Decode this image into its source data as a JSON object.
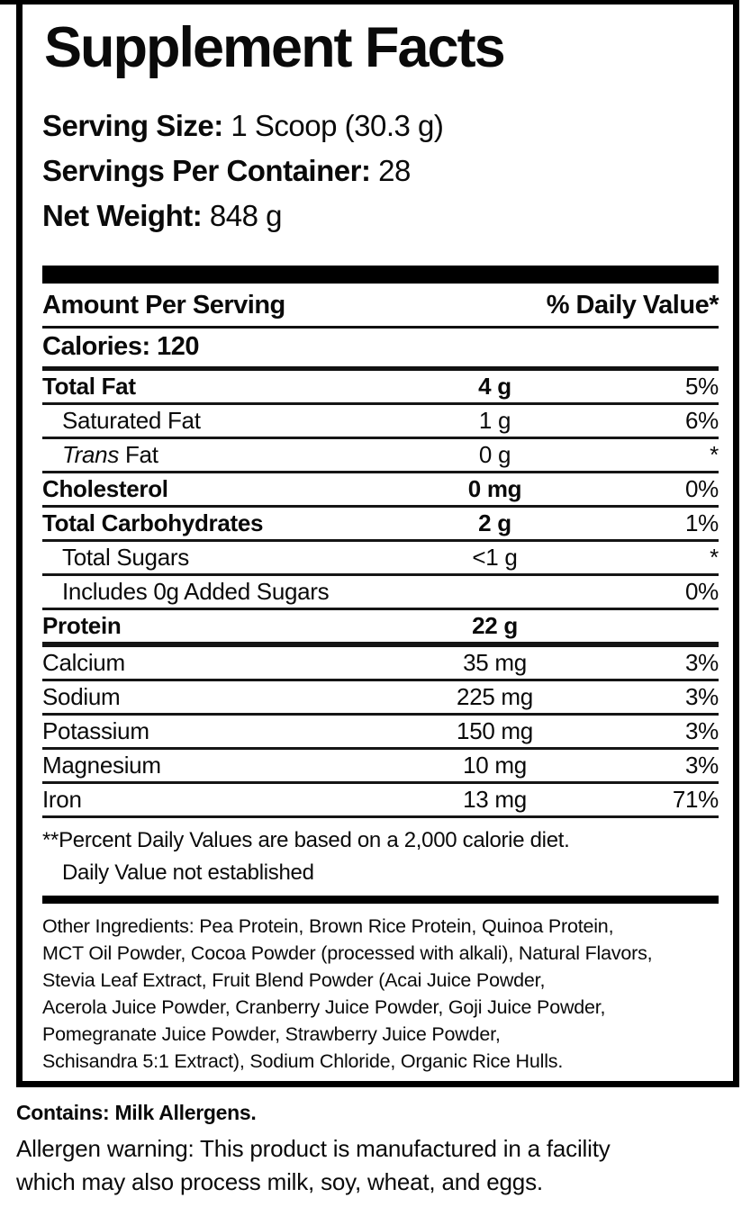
{
  "header": {
    "title": "Supplement Facts",
    "serving_size_label": "Serving Size:",
    "serving_size_value": " 1 Scoop (30.3 g)",
    "servings_label": "Servings Per Container:",
    "servings_value": " 28",
    "net_weight_label": "Net Weight:",
    "net_weight_value": " 848 g"
  },
  "table": {
    "amount_header": "Amount Per Serving",
    "dv_header": "% Daily Value*",
    "calories": "Calories: 120",
    "rows": [
      {
        "name": "Total Fat",
        "amount": "4 g",
        "dv": "5%"
      },
      {
        "name": "Saturated Fat",
        "amount": "1 g",
        "dv": "6%"
      },
      {
        "name_italic": "Trans",
        "name_rest": " Fat",
        "amount": "0 g",
        "dv": "*"
      },
      {
        "name": "Cholesterol",
        "amount": "0 mg",
        "dv": "0%"
      },
      {
        "name": "Total Carbohydrates",
        "amount": "2 g",
        "dv": "1%"
      },
      {
        "name": "Total Sugars",
        "amount": "<1 g",
        "dv": "*"
      },
      {
        "name": "Includes 0g Added Sugars",
        "amount": "",
        "dv": "0%"
      },
      {
        "name": "Protein",
        "amount": "22 g",
        "dv": ""
      },
      {
        "name": "Calcium",
        "amount": "35 mg",
        "dv": "3%"
      },
      {
        "name": "Sodium",
        "amount": "225 mg",
        "dv": "3%"
      },
      {
        "name": "Potassium",
        "amount": "150 mg",
        "dv": "3%"
      },
      {
        "name": "Magnesium",
        "amount": "10 mg",
        "dv": "3%"
      },
      {
        "name": "Iron",
        "amount": "13 mg",
        "dv": "71%"
      }
    ],
    "footnote_line1": "**Percent Daily Values are based on a 2,000 calorie diet.",
    "footnote_line2": "Daily Value not established"
  },
  "other_ingredients": {
    "label": "Other Ingredients",
    "line1_rest": ": Pea Protein, Brown Rice Protein, Quinoa Protein,",
    "line2": "MCT Oil Powder, Cocoa Powder (processed with alkali), Natural Flavors,",
    "line3": "Stevia Leaf Extract, Fruit Blend Powder (Acai Juice Powder,",
    "line4": "Acerola Juice Powder, Cranberry Juice Powder, Goji Juice Powder,",
    "line5": "Pomegranate Juice Powder, Strawberry Juice Powder,",
    "line6": "Schisandra 5:1 Extract), Sodium Chloride, Organic Rice Hulls."
  },
  "contains_text": "Contains: Milk Allergens.",
  "allergen": {
    "label": "Allergen warning:",
    "line1_rest": " This product is manufactured in a facility",
    "line2": "which may also process milk, soy, wheat, and eggs."
  },
  "colors": {
    "text": "#0a0a0a",
    "background": "#ffffff",
    "border": "#000000"
  }
}
